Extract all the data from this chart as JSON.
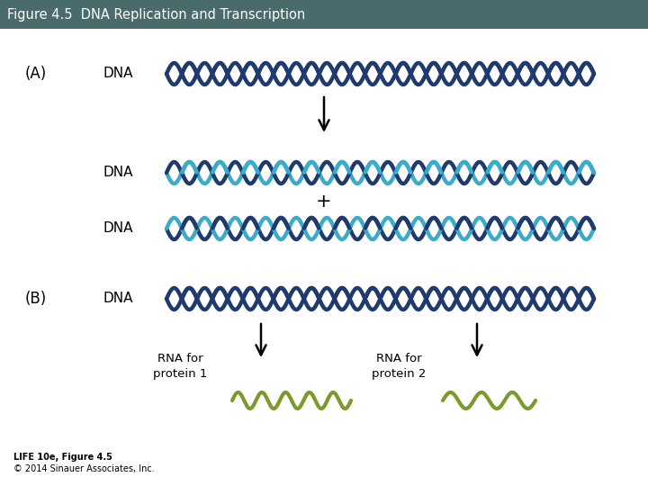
{
  "title": "Figure 4.5  DNA Replication and Transcription",
  "title_bg": "#4a6b6b",
  "title_color": "white",
  "bg_color": "#ffffff",
  "dna_dark_blue": "#1e3a6e",
  "dna_teal1": "#2e7da8",
  "dna_teal2": "#3aabcc",
  "rna_green": "#7a9a2a",
  "label_A": "(A)",
  "label_B": "(B)",
  "label_DNA": "DNA",
  "label_plus": "+",
  "label_rna1": "RNA for\nprotein 1",
  "label_rna2": "RNA for\nprotein 2",
  "footer1": "LIFE 10e, Figure 4.5",
  "footer2": "© 2014 Sinauer Associates, Inc."
}
